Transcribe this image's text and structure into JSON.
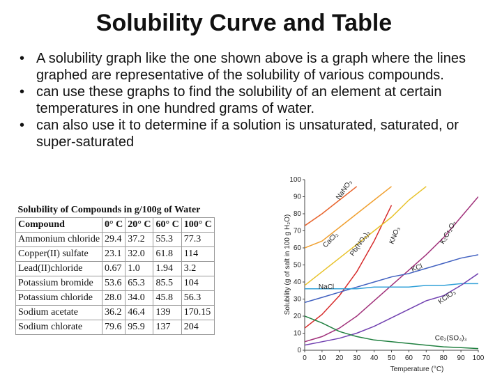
{
  "title": "Solubility Curve and Table",
  "bullets": [
    "A solubility graph like the one shown above is a graph where the lines graphed are representative of the solubility of various compounds.",
    "can use these graphs to find the solubility of an element at certain temperatures in one hundred grams of water.",
    "can also use it to determine if a solution is unsaturated, saturated, or super-saturated"
  ],
  "table": {
    "title": "Solubility of Compounds in g/100g of Water",
    "header": [
      "Compound",
      "0° C",
      "20° C",
      "60° C",
      "100° C"
    ],
    "rows": [
      [
        "Ammonium chloride",
        "29.4",
        "37.2",
        "55.3",
        "77.3"
      ],
      [
        "Copper(II) sulfate",
        "23.1",
        "32.0",
        "61.8",
        "114"
      ],
      [
        "Lead(II)chloride",
        "0.67",
        "1.0",
        "1.94",
        "3.2"
      ],
      [
        "Potassium bromide",
        "53.6",
        "65.3",
        "85.5",
        "104"
      ],
      [
        "Potassium chloride",
        "28.0",
        "34.0",
        "45.8",
        "56.3"
      ],
      [
        "Sodium acetate",
        "36.2",
        "46.4",
        "139",
        "170.15"
      ],
      [
        "Sodium chlorate",
        "79.6",
        "95.9",
        "137",
        "204"
      ]
    ]
  },
  "chart_data": {
    "type": "line",
    "x_label": "Temperature (°C)",
    "y_label": "Solubility (g of salt in 100 g H₂O)",
    "x": [
      0,
      10,
      20,
      30,
      40,
      50,
      60,
      70,
      80,
      90,
      100
    ],
    "xlim": [
      0,
      100
    ],
    "ylim": [
      0,
      100
    ],
    "xticks": [
      0,
      10,
      20,
      30,
      40,
      50,
      60,
      70,
      80,
      90,
      100
    ],
    "yticks": [
      0,
      10,
      20,
      30,
      40,
      50,
      60,
      70,
      80,
      90,
      100
    ],
    "grid": false,
    "series": [
      {
        "name": "NaNO₃",
        "color": "#e8632b",
        "values": [
          73,
          80,
          88,
          96,
          null,
          null,
          null,
          null,
          null,
          null,
          null
        ]
      },
      {
        "name": "KNO₃",
        "color": "#d62a2a",
        "values": [
          13,
          21,
          32,
          46,
          64,
          85,
          null,
          null,
          null,
          null,
          null
        ]
      },
      {
        "name": "Pb(NO₃)₂",
        "color": "#e8c22a",
        "values": [
          38,
          46,
          54,
          62,
          70,
          78,
          88,
          96,
          null,
          null,
          null
        ]
      },
      {
        "name": "CaCl₂",
        "color": "#f0a030",
        "values": [
          60,
          64,
          72,
          80,
          88,
          96,
          null,
          null,
          null,
          null,
          null
        ]
      },
      {
        "name": "K₂Cr₂O₇",
        "color": "#a0307a",
        "values": [
          5,
          8,
          13,
          20,
          29,
          38,
          47,
          56,
          66,
          78,
          90
        ]
      },
      {
        "name": "KCl",
        "color": "#4060c0",
        "values": [
          28,
          31,
          34,
          37,
          40,
          43,
          45,
          48,
          51,
          54,
          56
        ]
      },
      {
        "name": "NaCl",
        "color": "#30a0d8",
        "values": [
          36,
          36,
          36,
          36,
          37,
          37,
          37,
          38,
          38,
          39,
          39
        ]
      },
      {
        "name": "KClO₃",
        "color": "#7040b0",
        "values": [
          3,
          5,
          7,
          10,
          14,
          19,
          24,
          29,
          32,
          38,
          45
        ]
      },
      {
        "name": "Ce₂(SO₄)₃",
        "color": "#208040",
        "values": [
          20,
          16,
          11,
          8,
          6,
          5,
          4,
          3,
          2,
          1.5,
          1
        ]
      }
    ]
  }
}
